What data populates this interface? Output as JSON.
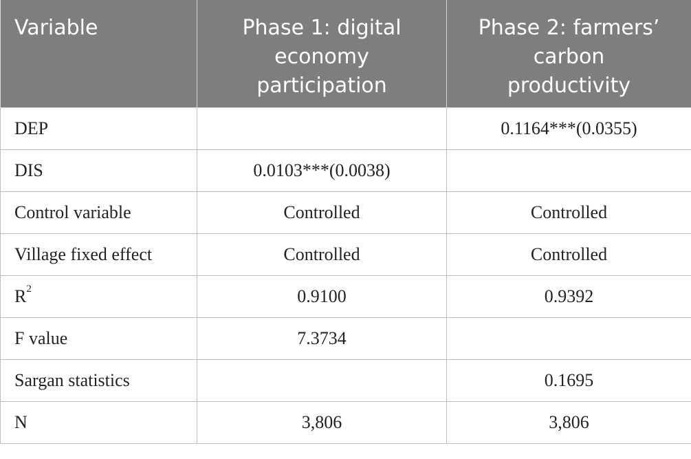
{
  "table": {
    "headers": [
      "Variable",
      "Phase 1: digital economy participation",
      "Phase 2: farmers’ carbon productivity"
    ],
    "header_lines": [
      [
        "Variable"
      ],
      [
        "Phase 1: digital",
        "economy",
        "participation"
      ],
      [
        "Phase 2: farmers’",
        "carbon",
        "productivity"
      ]
    ],
    "rows": [
      {
        "label": "DEP",
        "label_sup": "",
        "phase1": "",
        "phase2": "0.1164***(0.0355)"
      },
      {
        "label": "DIS",
        "label_sup": "",
        "phase1": "0.0103***(0.0038)",
        "phase2": ""
      },
      {
        "label": "Control variable",
        "label_sup": "",
        "phase1": "Controlled",
        "phase2": "Controlled"
      },
      {
        "label": "Village fixed effect",
        "label_sup": "",
        "phase1": "Controlled",
        "phase2": "Controlled"
      },
      {
        "label": "R",
        "label_sup": "2",
        "phase1": "0.9100",
        "phase2": "0.9392"
      },
      {
        "label": "F value",
        "label_sup": "",
        "phase1": "7.3734",
        "phase2": ""
      },
      {
        "label": "Sargan statistics",
        "label_sup": "",
        "phase1": "",
        "phase2": "0.1695"
      },
      {
        "label": "N",
        "label_sup": "",
        "phase1": "3,806",
        "phase2": "3,806"
      }
    ]
  },
  "colors": {
    "header_bg": "#7e7e7e",
    "header_text": "#ffffff",
    "body_text": "#222222",
    "border": "#bdbdbd"
  }
}
